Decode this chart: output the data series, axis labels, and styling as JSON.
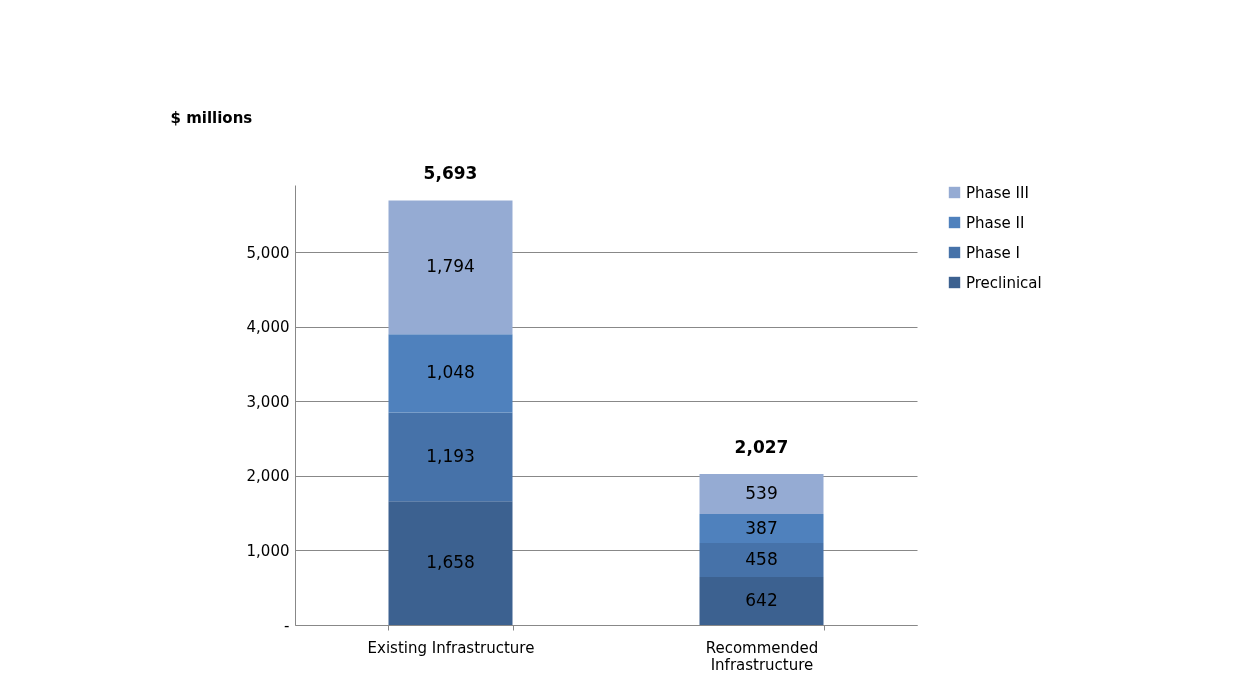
{
  "chart_data": {
    "type": "bar",
    "stacked": true,
    "ylabel": "$ millions",
    "categories": [
      "Existing Infrastructure",
      "Recommended Infrastructure"
    ],
    "series": [
      {
        "name": "Preclinical",
        "color": "#3c6190",
        "values": [
          1658,
          642
        ],
        "value_labels": [
          "1,658",
          "642"
        ]
      },
      {
        "name": "Phase I",
        "color": "#4672a9",
        "values": [
          1193,
          458
        ],
        "value_labels": [
          "1,193",
          "458"
        ]
      },
      {
        "name": "Phase II",
        "color": "#4f81bd",
        "values": [
          1048,
          387
        ],
        "value_labels": [
          "1,048",
          "387"
        ]
      },
      {
        "name": "Phase III",
        "color": "#95abd3",
        "values": [
          1794,
          539
        ],
        "value_labels": [
          "1,794",
          "539"
        ]
      }
    ],
    "totals": [
      "5,693",
      "2,027"
    ],
    "ylim": [
      0,
      5900
    ],
    "yticks": [
      {
        "value": 0,
        "label": "-"
      },
      {
        "value": 1000,
        "label": "1,000"
      },
      {
        "value": 2000,
        "label": "2,000"
      },
      {
        "value": 3000,
        "label": "3,000"
      },
      {
        "value": 4000,
        "label": "4,000"
      },
      {
        "value": 5000,
        "label": "5,000"
      }
    ],
    "grid": "y",
    "legend": "right"
  }
}
